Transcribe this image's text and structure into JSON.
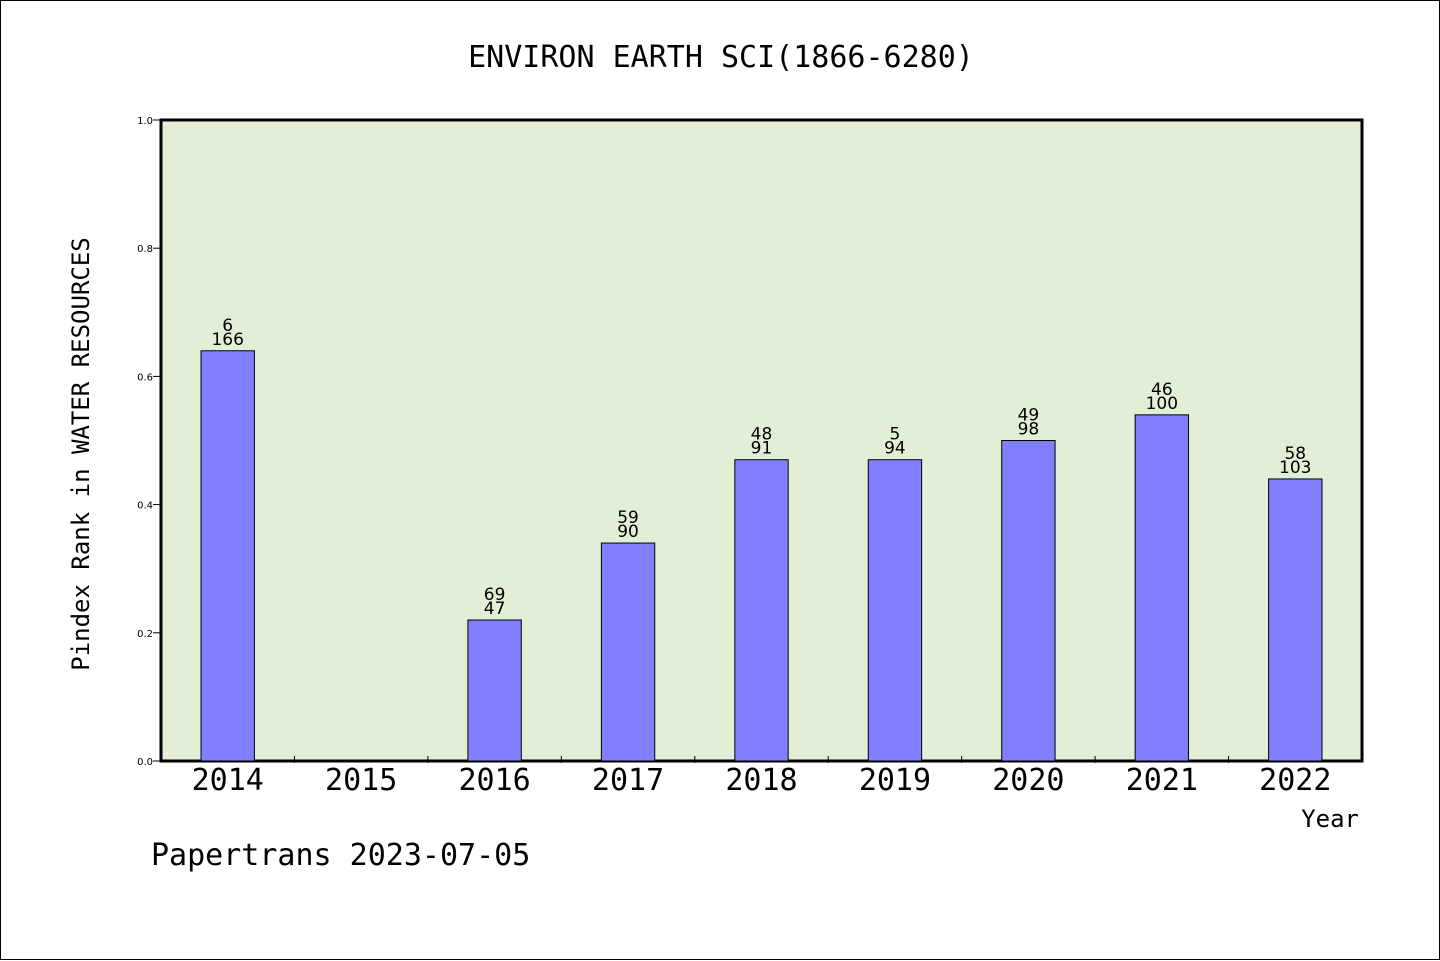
{
  "chart_data": {
    "type": "bar",
    "title": "ENVIRON EARTH SCI(1866-6280)",
    "xlabel": "Year",
    "ylabel": "Pindex Rank in WATER RESOURCES",
    "categories": [
      "2014",
      "2015",
      "2016",
      "2017",
      "2018",
      "2019",
      "2020",
      "2021",
      "2022"
    ],
    "values": [
      0.64,
      null,
      0.22,
      0.34,
      0.47,
      0.47,
      0.5,
      0.54,
      0.44
    ],
    "labels_top": [
      "6",
      "",
      "69",
      "59",
      "48",
      "5",
      "49",
      "46",
      "58"
    ],
    "labels_bottom": [
      "166",
      "",
      "47",
      "90",
      "91",
      "94",
      "98",
      "100",
      "103"
    ],
    "ylim": [
      0,
      1.0
    ],
    "yticks": [
      "0.0",
      "0.2",
      "0.4",
      "0.6",
      "0.8",
      "1.0"
    ],
    "grid": false,
    "colors": {
      "bar": "#8080ff",
      "plot_background": "#e2efd6"
    }
  },
  "footer": "Papertrans 2023-07-05"
}
